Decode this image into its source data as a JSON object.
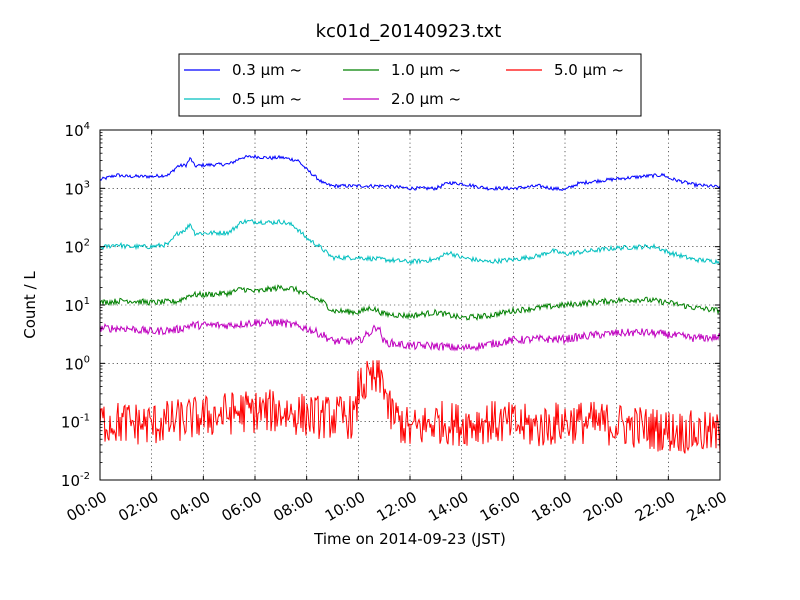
{
  "chart_data": {
    "type": "line",
    "title": "kc01d_20140923.txt",
    "xlabel": "Time on 2014-09-23 (JST)",
    "ylabel": "Count / L",
    "yscale": "log",
    "xlim": [
      "00:00",
      "24:00"
    ],
    "ylim": [
      0.01,
      10000
    ],
    "x_ticks": [
      "00:00",
      "02:00",
      "04:00",
      "06:00",
      "08:00",
      "10:00",
      "12:00",
      "14:00",
      "16:00",
      "18:00",
      "20:00",
      "22:00",
      "24:00"
    ],
    "y_ticks": [
      {
        "value": 0.01,
        "base": "10",
        "exp": "-2"
      },
      {
        "value": 0.1,
        "base": "10",
        "exp": "-1"
      },
      {
        "value": 1,
        "base": "10",
        "exp": "0"
      },
      {
        "value": 10,
        "base": "10",
        "exp": "1"
      },
      {
        "value": 100,
        "base": "10",
        "exp": "2"
      },
      {
        "value": 1000,
        "base": "10",
        "exp": "3"
      },
      {
        "value": 10000,
        "base": "10",
        "exp": "4"
      }
    ],
    "grid": true,
    "legend_position": "top-center",
    "series": [
      {
        "name": "0.3 μm ~",
        "color": "#0000ff",
        "noise": 0.03,
        "points": [
          [
            "00:00",
            1400
          ],
          [
            "00:40",
            1700
          ],
          [
            "01:00",
            1600
          ],
          [
            "02:00",
            1600
          ],
          [
            "02:40",
            1700
          ],
          [
            "03:00",
            2400
          ],
          [
            "03:20",
            2500
          ],
          [
            "03:30",
            3300
          ],
          [
            "03:40",
            2400
          ],
          [
            "04:00",
            2500
          ],
          [
            "05:00",
            2600
          ],
          [
            "05:30",
            3400
          ],
          [
            "06:00",
            3500
          ],
          [
            "06:40",
            3300
          ],
          [
            "07:00",
            3400
          ],
          [
            "07:40",
            3000
          ],
          [
            "08:00",
            2100
          ],
          [
            "08:40",
            1200
          ],
          [
            "09:00",
            1100
          ],
          [
            "10:00",
            1100
          ],
          [
            "11:00",
            1100
          ],
          [
            "12:00",
            1000
          ],
          [
            "13:00",
            1000
          ],
          [
            "13:30",
            1250
          ],
          [
            "14:00",
            1200
          ],
          [
            "15:00",
            1000
          ],
          [
            "16:00",
            1000
          ],
          [
            "17:00",
            1100
          ],
          [
            "17:30",
            1000
          ],
          [
            "18:00",
            950
          ],
          [
            "18:30",
            1200
          ],
          [
            "19:00",
            1300
          ],
          [
            "20:00",
            1450
          ],
          [
            "21:00",
            1600
          ],
          [
            "21:50",
            1700
          ],
          [
            "22:00",
            1500
          ],
          [
            "23:00",
            1150
          ],
          [
            "24:00",
            1050
          ]
        ]
      },
      {
        "name": "0.5 μm ~",
        "color": "#00bfbf",
        "noise": 0.04,
        "points": [
          [
            "00:00",
            95
          ],
          [
            "00:40",
            110
          ],
          [
            "01:00",
            100
          ],
          [
            "02:00",
            100
          ],
          [
            "02:40",
            110
          ],
          [
            "03:00",
            170
          ],
          [
            "03:20",
            200
          ],
          [
            "03:30",
            250
          ],
          [
            "03:40",
            170
          ],
          [
            "04:00",
            170
          ],
          [
            "05:00",
            175
          ],
          [
            "05:30",
            270
          ],
          [
            "06:00",
            270
          ],
          [
            "06:40",
            260
          ],
          [
            "07:00",
            270
          ],
          [
            "07:30",
            230
          ],
          [
            "08:00",
            140
          ],
          [
            "08:30",
            100
          ],
          [
            "09:00",
            65
          ],
          [
            "10:00",
            65
          ],
          [
            "11:00",
            60
          ],
          [
            "12:00",
            55
          ],
          [
            "13:00",
            60
          ],
          [
            "13:30",
            80
          ],
          [
            "14:00",
            65
          ],
          [
            "15:00",
            55
          ],
          [
            "16:00",
            60
          ],
          [
            "17:00",
            70
          ],
          [
            "17:30",
            85
          ],
          [
            "18:00",
            75
          ],
          [
            "19:00",
            85
          ],
          [
            "20:00",
            95
          ],
          [
            "21:00",
            100
          ],
          [
            "21:30",
            100
          ],
          [
            "22:00",
            80
          ],
          [
            "23:00",
            60
          ],
          [
            "24:00",
            55
          ]
        ]
      },
      {
        "name": "1.0 μm ~",
        "color": "#008000",
        "noise": 0.05,
        "points": [
          [
            "00:00",
            11
          ],
          [
            "01:00",
            12
          ],
          [
            "02:00",
            11
          ],
          [
            "03:00",
            11.5
          ],
          [
            "03:30",
            15
          ],
          [
            "04:00",
            15
          ],
          [
            "05:00",
            16
          ],
          [
            "05:30",
            19
          ],
          [
            "06:00",
            17
          ],
          [
            "07:00",
            20
          ],
          [
            "07:30",
            19
          ],
          [
            "08:00",
            15
          ],
          [
            "08:40",
            11
          ],
          [
            "09:00",
            8
          ],
          [
            "10:00",
            7.5
          ],
          [
            "10:30",
            9
          ],
          [
            "11:00",
            7
          ],
          [
            "12:00",
            6.5
          ],
          [
            "13:00",
            7.5
          ],
          [
            "14:00",
            6
          ],
          [
            "15:00",
            6.5
          ],
          [
            "16:00",
            8
          ],
          [
            "17:00",
            9
          ],
          [
            "18:00",
            10
          ],
          [
            "19:00",
            11
          ],
          [
            "20:00",
            12
          ],
          [
            "21:00",
            12.5
          ],
          [
            "22:00",
            11
          ],
          [
            "23:00",
            9
          ],
          [
            "24:00",
            8
          ]
        ]
      },
      {
        "name": "2.0 μm ~",
        "color": "#bf00bf",
        "noise": 0.07,
        "points": [
          [
            "00:00",
            4
          ],
          [
            "01:00",
            4
          ],
          [
            "02:00",
            3.5
          ],
          [
            "03:00",
            3.8
          ],
          [
            "03:30",
            4.5
          ],
          [
            "04:00",
            4.5
          ],
          [
            "05:00",
            4.5
          ],
          [
            "06:00",
            5
          ],
          [
            "07:00",
            5
          ],
          [
            "08:00",
            4
          ],
          [
            "08:40",
            3
          ],
          [
            "09:00",
            2.4
          ],
          [
            "10:00",
            2.4
          ],
          [
            "10:30",
            3.5
          ],
          [
            "10:45",
            4.5
          ],
          [
            "11:00",
            2.3
          ],
          [
            "12:00",
            2
          ],
          [
            "13:00",
            2
          ],
          [
            "14:00",
            1.8
          ],
          [
            "15:00",
            2.1
          ],
          [
            "16:00",
            2.5
          ],
          [
            "17:00",
            2.6
          ],
          [
            "18:00",
            2.6
          ],
          [
            "19:00",
            3
          ],
          [
            "20:00",
            3.3
          ],
          [
            "21:00",
            3.4
          ],
          [
            "22:00",
            3.1
          ],
          [
            "23:00",
            2.7
          ],
          [
            "24:00",
            2.8
          ]
        ]
      },
      {
        "name": "5.0 μm ~",
        "color": "#ff0000",
        "noise": 0.38,
        "points": [
          [
            "00:00",
            0.1
          ],
          [
            "02:00",
            0.09
          ],
          [
            "04:00",
            0.12
          ],
          [
            "05:30",
            0.15
          ],
          [
            "07:00",
            0.15
          ],
          [
            "08:30",
            0.12
          ],
          [
            "09:30",
            0.12
          ],
          [
            "09:55",
            0.12
          ],
          [
            "10:00",
            0.4
          ],
          [
            "10:30",
            0.5
          ],
          [
            "11:00",
            0.5
          ],
          [
            "11:10",
            0.15
          ],
          [
            "12:00",
            0.07
          ],
          [
            "13:00",
            0.1
          ],
          [
            "14:00",
            0.09
          ],
          [
            "15:00",
            0.1
          ],
          [
            "16:00",
            0.09
          ],
          [
            "17:00",
            0.08
          ],
          [
            "18:00",
            0.1
          ],
          [
            "20:00",
            0.09
          ],
          [
            "22:00",
            0.07
          ],
          [
            "24:00",
            0.06
          ]
        ]
      }
    ]
  }
}
